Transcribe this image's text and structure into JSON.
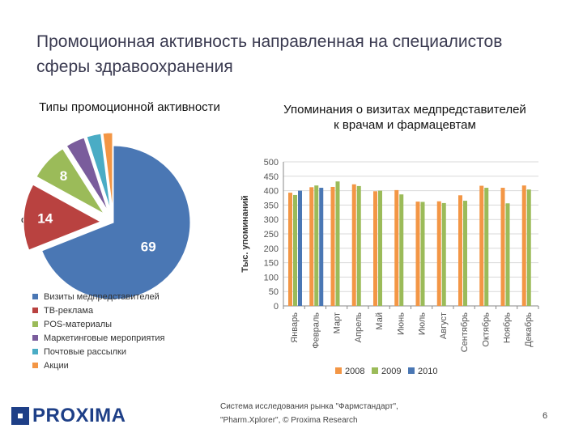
{
  "slide": {
    "title": "Промоционная активность направленная на специалистов сферы здравоохранения",
    "percent_sign": "%",
    "source": "Система исследования рынка \"Фармстандарт\", \"Pharm.Xplorer\", © Proxima Research",
    "page_number": "6",
    "logo_text": "PROXIMA"
  },
  "chart_data": [
    {
      "type": "pie",
      "title": "Типы промоционной активности",
      "categories": [
        "Визиты медпредставителей",
        "ТВ-реклама",
        "POS-материалы",
        "Маркетинговые мероприятия",
        "Почтовые рассылки",
        "Акции"
      ],
      "values": [
        69,
        14,
        8,
        4,
        3,
        2
      ],
      "value_labels": [
        "69",
        "14",
        "8",
        "",
        "",
        ""
      ],
      "colors": [
        "#4a77b4",
        "#b94240",
        "#9bbb59",
        "#7a5c9c",
        "#4aacc5",
        "#f39645"
      ],
      "legend": "bottom"
    },
    {
      "type": "bar",
      "title": "Упоминания о визитах медпредставителей к врачам и фармацевтам",
      "ylabel": "Тыс. упоминаний",
      "xlabel": "",
      "categories": [
        "Январь",
        "Февраль",
        "Март",
        "Апрель",
        "Май",
        "Июнь",
        "Июль",
        "Август",
        "Сентябрь",
        "Октябрь",
        "Ноябрь",
        "Декабрь"
      ],
      "ylim": [
        0,
        500
      ],
      "yticks": [
        0,
        50,
        100,
        150,
        200,
        250,
        300,
        350,
        400,
        450,
        500
      ],
      "grid": true,
      "legend": "bottom",
      "series": [
        {
          "name": "2008",
          "color": "#f39645",
          "values": [
            393,
            412,
            413,
            422,
            398,
            402,
            362,
            363,
            384,
            417,
            410,
            418
          ]
        },
        {
          "name": "2009",
          "color": "#9bbb59",
          "values": [
            385,
            418,
            432,
            416,
            400,
            387,
            361,
            357,
            365,
            410,
            356,
            404
          ]
        },
        {
          "name": "2010",
          "color": "#4a77b4",
          "values": [
            400,
            410,
            null,
            null,
            null,
            null,
            null,
            null,
            null,
            null,
            null,
            null
          ]
        }
      ]
    }
  ]
}
